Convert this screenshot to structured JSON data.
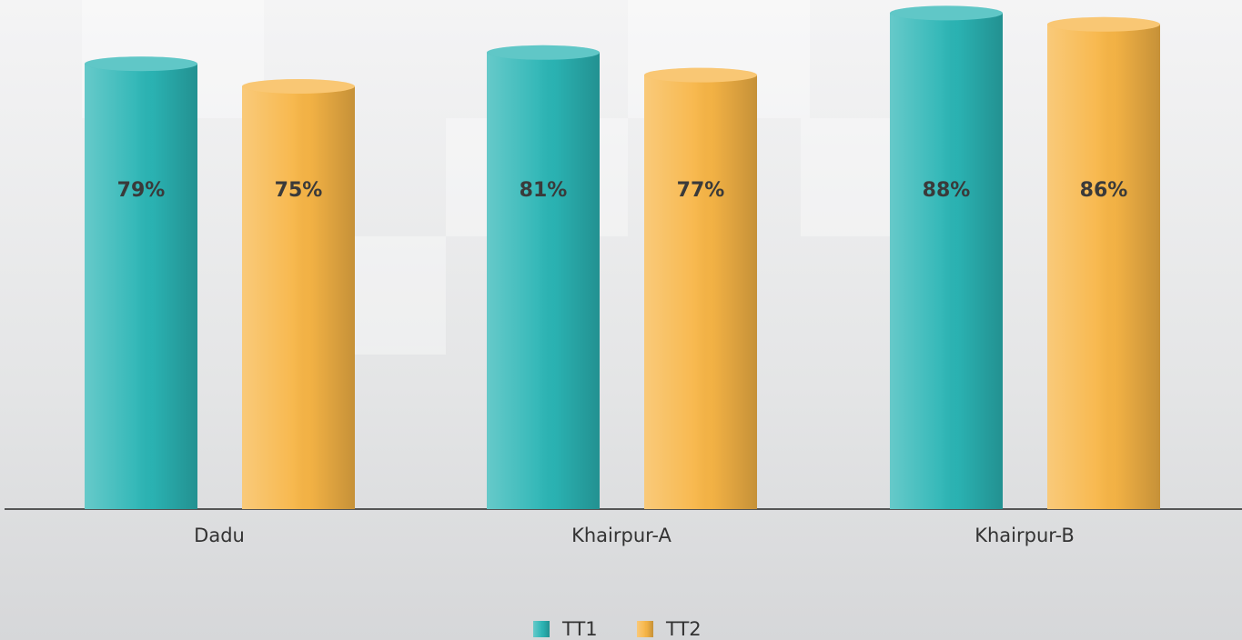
{
  "chart_data": {
    "type": "bar",
    "categories": [
      "Dadu",
      "Khairpur-A",
      "Khairpur-B"
    ],
    "series": [
      {
        "name": "TT1",
        "color": "#2bb5b5",
        "values": [
          79,
          81,
          88
        ],
        "value_labels": [
          "79%",
          "81%",
          "88%"
        ]
      },
      {
        "name": "TT2",
        "color": "#f7b546",
        "values": [
          75,
          77,
          86
        ],
        "value_labels": [
          "75%",
          "77%",
          "86%"
        ]
      }
    ]
  }
}
